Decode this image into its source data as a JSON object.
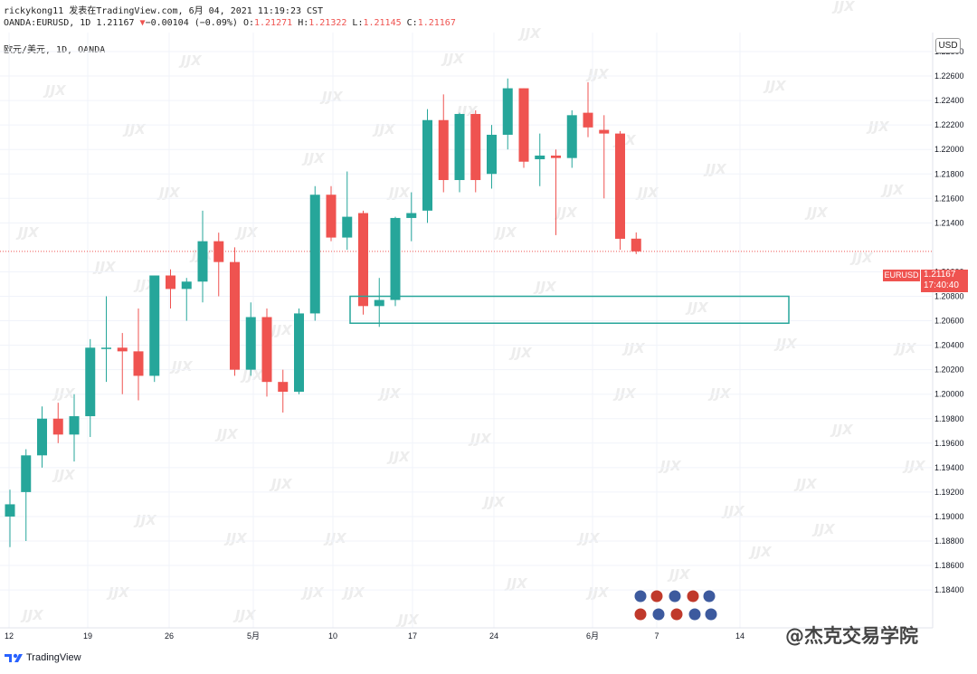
{
  "header": {
    "line1": "rickykong11 发表在TradingView.com, 6月 04, 2021 11:19:23 CST",
    "symbol": "OANDA:EURUSD, 1D 1.21167",
    "change_arrow": "▼",
    "change": "−0.00104 (−0.09%)",
    "o_label": "O:",
    "o_value": "1.21271",
    "h_label": "H:",
    "h_value": "1.21322",
    "l_label": "L:",
    "l_value": "1.21145",
    "c_label": "C:",
    "c_value": "1.21167",
    "pair_title": "欧元/美元, 1D, OANDA"
  },
  "axis": {
    "currency_badge": "USD",
    "price_ticks": [
      "1.22800",
      "1.22600",
      "1.22400",
      "1.22200",
      "1.22000",
      "1.21800",
      "1.21600",
      "1.21400",
      "1.21000",
      "1.20800",
      "1.20600",
      "1.20400",
      "1.20200",
      "1.20000",
      "1.19800",
      "1.19600",
      "1.19400",
      "1.19200",
      "1.19000",
      "1.18800",
      "1.18600",
      "1.18400"
    ],
    "date_ticks": [
      "12",
      "19",
      "26",
      "5月",
      "10",
      "17",
      "24",
      "6月",
      "7",
      "14"
    ]
  },
  "last_price": {
    "symbol": "EURUSD",
    "price": "1.21167",
    "countdown": "17:40:40"
  },
  "footer": {
    "logo_text": "TradingView"
  },
  "watermark": {
    "brand": "@杰克交易学院",
    "tile": "JJX"
  },
  "colors": {
    "up": "#26a69a",
    "down": "#ef5350",
    "box": "#26a69a",
    "grid": "#f0f3fa"
  },
  "chart_data": {
    "type": "candlestick",
    "title": "欧元/美元, 1D, OANDA",
    "ylim": [
      1.184,
      1.229
    ],
    "xlabel": "",
    "ylabel": "",
    "candles": [
      {
        "o": 1.19,
        "h": 1.1922,
        "l": 1.1875,
        "c": 1.191
      },
      {
        "o": 1.192,
        "h": 1.1955,
        "l": 1.188,
        "c": 1.195
      },
      {
        "o": 1.195,
        "h": 1.199,
        "l": 1.194,
        "c": 1.198
      },
      {
        "o": 1.198,
        "h": 1.1993,
        "l": 1.196,
        "c": 1.1967
      },
      {
        "o": 1.1967,
        "h": 1.2,
        "l": 1.1945,
        "c": 1.1982
      },
      {
        "o": 1.1982,
        "h": 1.2045,
        "l": 1.1965,
        "c": 1.2038
      },
      {
        "o": 1.2038,
        "h": 1.208,
        "l": 1.201,
        "c": 1.2038
      },
      {
        "o": 1.2038,
        "h": 1.205,
        "l": 1.2,
        "c": 1.2035
      },
      {
        "o": 1.2035,
        "h": 1.207,
        "l": 1.1995,
        "c": 1.2015
      },
      {
        "o": 1.2015,
        "h": 1.2097,
        "l": 1.201,
        "c": 1.2097
      },
      {
        "o": 1.2097,
        "h": 1.2102,
        "l": 1.207,
        "c": 1.2086
      },
      {
        "o": 1.2086,
        "h": 1.2095,
        "l": 1.206,
        "c": 1.2092
      },
      {
        "o": 1.2092,
        "h": 1.215,
        "l": 1.2075,
        "c": 1.2125
      },
      {
        "o": 1.2125,
        "h": 1.2132,
        "l": 1.208,
        "c": 1.2108
      },
      {
        "o": 1.2108,
        "h": 1.212,
        "l": 1.2015,
        "c": 1.202
      },
      {
        "o": 1.202,
        "h": 1.2075,
        "l": 1.2015,
        "c": 1.2063
      },
      {
        "o": 1.2063,
        "h": 1.207,
        "l": 1.1998,
        "c": 1.201
      },
      {
        "o": 1.201,
        "h": 1.202,
        "l": 1.1985,
        "c": 1.2002
      },
      {
        "o": 1.2002,
        "h": 1.207,
        "l": 1.2,
        "c": 1.2066
      },
      {
        "o": 1.2066,
        "h": 1.217,
        "l": 1.206,
        "c": 1.2163
      },
      {
        "o": 1.2163,
        "h": 1.217,
        "l": 1.2125,
        "c": 1.2128
      },
      {
        "o": 1.2128,
        "h": 1.2182,
        "l": 1.2118,
        "c": 1.2145
      },
      {
        "o": 1.2148,
        "h": 1.215,
        "l": 1.2065,
        "c": 1.2072
      },
      {
        "o": 1.2072,
        "h": 1.2095,
        "l": 1.2055,
        "c": 1.2077
      },
      {
        "o": 1.2077,
        "h": 1.2145,
        "l": 1.2072,
        "c": 1.2144
      },
      {
        "o": 1.2144,
        "h": 1.2165,
        "l": 1.2125,
        "c": 1.2148
      },
      {
        "o": 1.215,
        "h": 1.2233,
        "l": 1.214,
        "c": 1.2224
      },
      {
        "o": 1.2224,
        "h": 1.2245,
        "l": 1.2165,
        "c": 1.2175
      },
      {
        "o": 1.2175,
        "h": 1.223,
        "l": 1.2165,
        "c": 1.2229
      },
      {
        "o": 1.2229,
        "h": 1.2232,
        "l": 1.2165,
        "c": 1.2175
      },
      {
        "o": 1.218,
        "h": 1.222,
        "l": 1.2168,
        "c": 1.2212
      },
      {
        "o": 1.2212,
        "h": 1.2258,
        "l": 1.22,
        "c": 1.225
      },
      {
        "o": 1.225,
        "h": 1.225,
        "l": 1.2185,
        "c": 1.219
      },
      {
        "o": 1.2192,
        "h": 1.2213,
        "l": 1.217,
        "c": 1.2195
      },
      {
        "o": 1.2195,
        "h": 1.22,
        "l": 1.213,
        "c": 1.2193
      },
      {
        "o": 1.2193,
        "h": 1.2232,
        "l": 1.2185,
        "c": 1.2228
      },
      {
        "o": 1.223,
        "h": 1.2255,
        "l": 1.221,
        "c": 1.2218
      },
      {
        "o": 1.2216,
        "h": 1.2228,
        "l": 1.216,
        "c": 1.2213
      },
      {
        "o": 1.2213,
        "h": 1.2215,
        "l": 1.2118,
        "c": 1.2127
      },
      {
        "o": 1.21271,
        "h": 1.21322,
        "l": 1.21145,
        "c": 1.21167
      }
    ],
    "zone": {
      "price_high": 1.208,
      "price_low": 1.2058
    },
    "last_price_line": 1.21167
  }
}
